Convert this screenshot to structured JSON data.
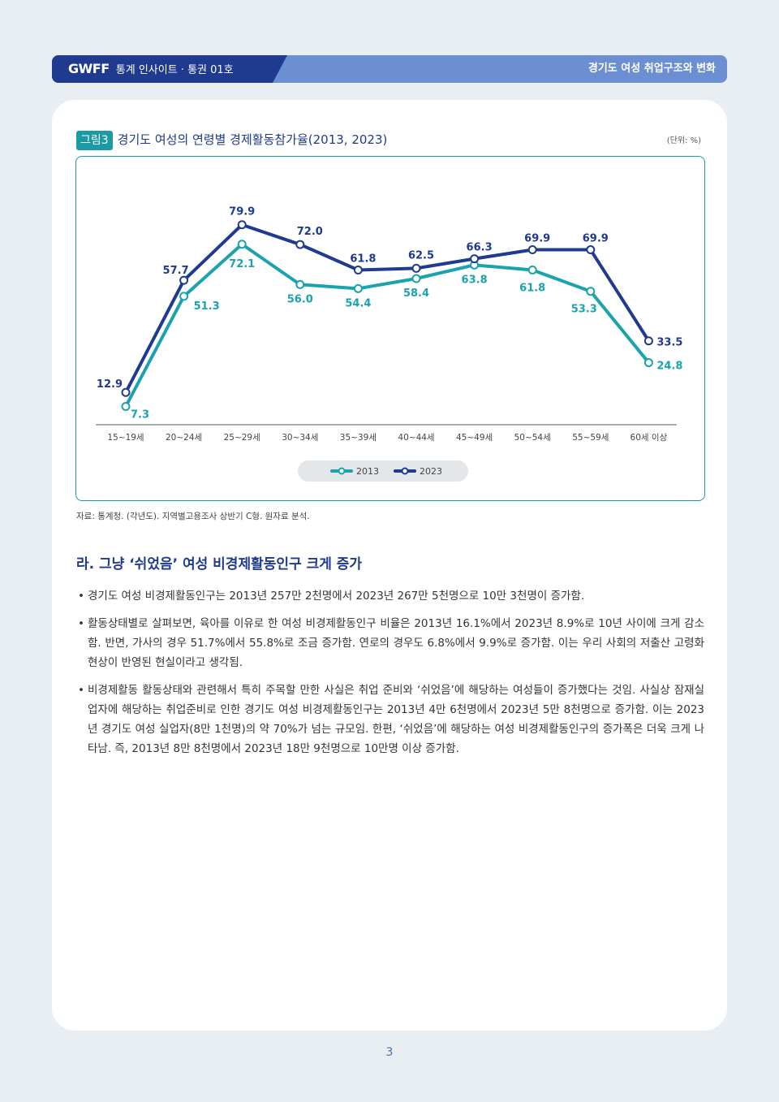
{
  "header": {
    "brand": "GWFF",
    "series_title": "통계 인사이트 · 통권 01호",
    "report_title": "경기도 여성 취업구조와 변화"
  },
  "figure": {
    "badge": "그림3",
    "title": "경기도 여성의 연령별 경제활동참가율(2013, 2023)",
    "unit": "(단위: %)"
  },
  "chart_data": {
    "type": "line",
    "categories": [
      "15~19세",
      "20~24세",
      "25~29세",
      "30~34세",
      "35~39세",
      "40~44세",
      "45~49세",
      "50~54세",
      "55~59세",
      "60세 이상"
    ],
    "series": [
      {
        "name": "2013",
        "values": [
          7.3,
          51.3,
          72.1,
          56.0,
          54.4,
          58.4,
          63.8,
          61.8,
          53.3,
          24.8
        ],
        "color": "#1aa3ad"
      },
      {
        "name": "2023",
        "values": [
          12.9,
          57.7,
          79.9,
          72.0,
          61.8,
          62.5,
          66.3,
          69.9,
          69.9,
          33.5
        ],
        "color": "#1f3a8f"
      }
    ],
    "legend": "bottom-center",
    "grid": false
  },
  "source": "자료: 통계청. (각년도). 지역별고용조사 상반기 C형. 원자료 분석.",
  "section": {
    "heading": "라. 그냥 ‘쉬었음’ 여성 비경제활동인구 크게 증가",
    "bullets": [
      "경기도 여성 비경제활동인구는 2013년 257만 2천명에서 2023년 267만 5천명으로 10만 3천명이 증가함.",
      "활동상태별로 살펴보면, 육아를 이유로 한 여성 비경제활동인구 비율은 2013년 16.1%에서 2023년 8.9%로 10년 사이에 크게 감소함. 반면, 가사의 경우 51.7%에서 55.8%로 조금 증가함. 연로의 경우도 6.8%에서 9.9%로 증가함. 이는 우리 사회의 저출산 고령화 현상이 반영된 현실이라고 생각됨.",
      "비경제활동 활동상태와 관련해서 특히 주목할 만한 사실은 취업 준비와 ‘쉬었음’에 해당하는 여성들이 증가했다는 것임. 사실상 잠재실업자에 해당하는 취업준비로 인한 경기도 여성 비경제활동인구는 2013년 4만 6천명에서 2023년 5만 8천명으로 증가함. 이는 2023년 경기도 여성 실업자(8만 1천명)의 약 70%가 넘는 규모임. 한편, ‘쉬었음’에 해당하는 여성 비경제활동인구의 증가폭은 더욱 크게 나타남. 즉, 2013년 8만 8천명에서 2023년 18만 9천명으로 10만명 이상 증가함."
    ]
  },
  "page_number": "3"
}
